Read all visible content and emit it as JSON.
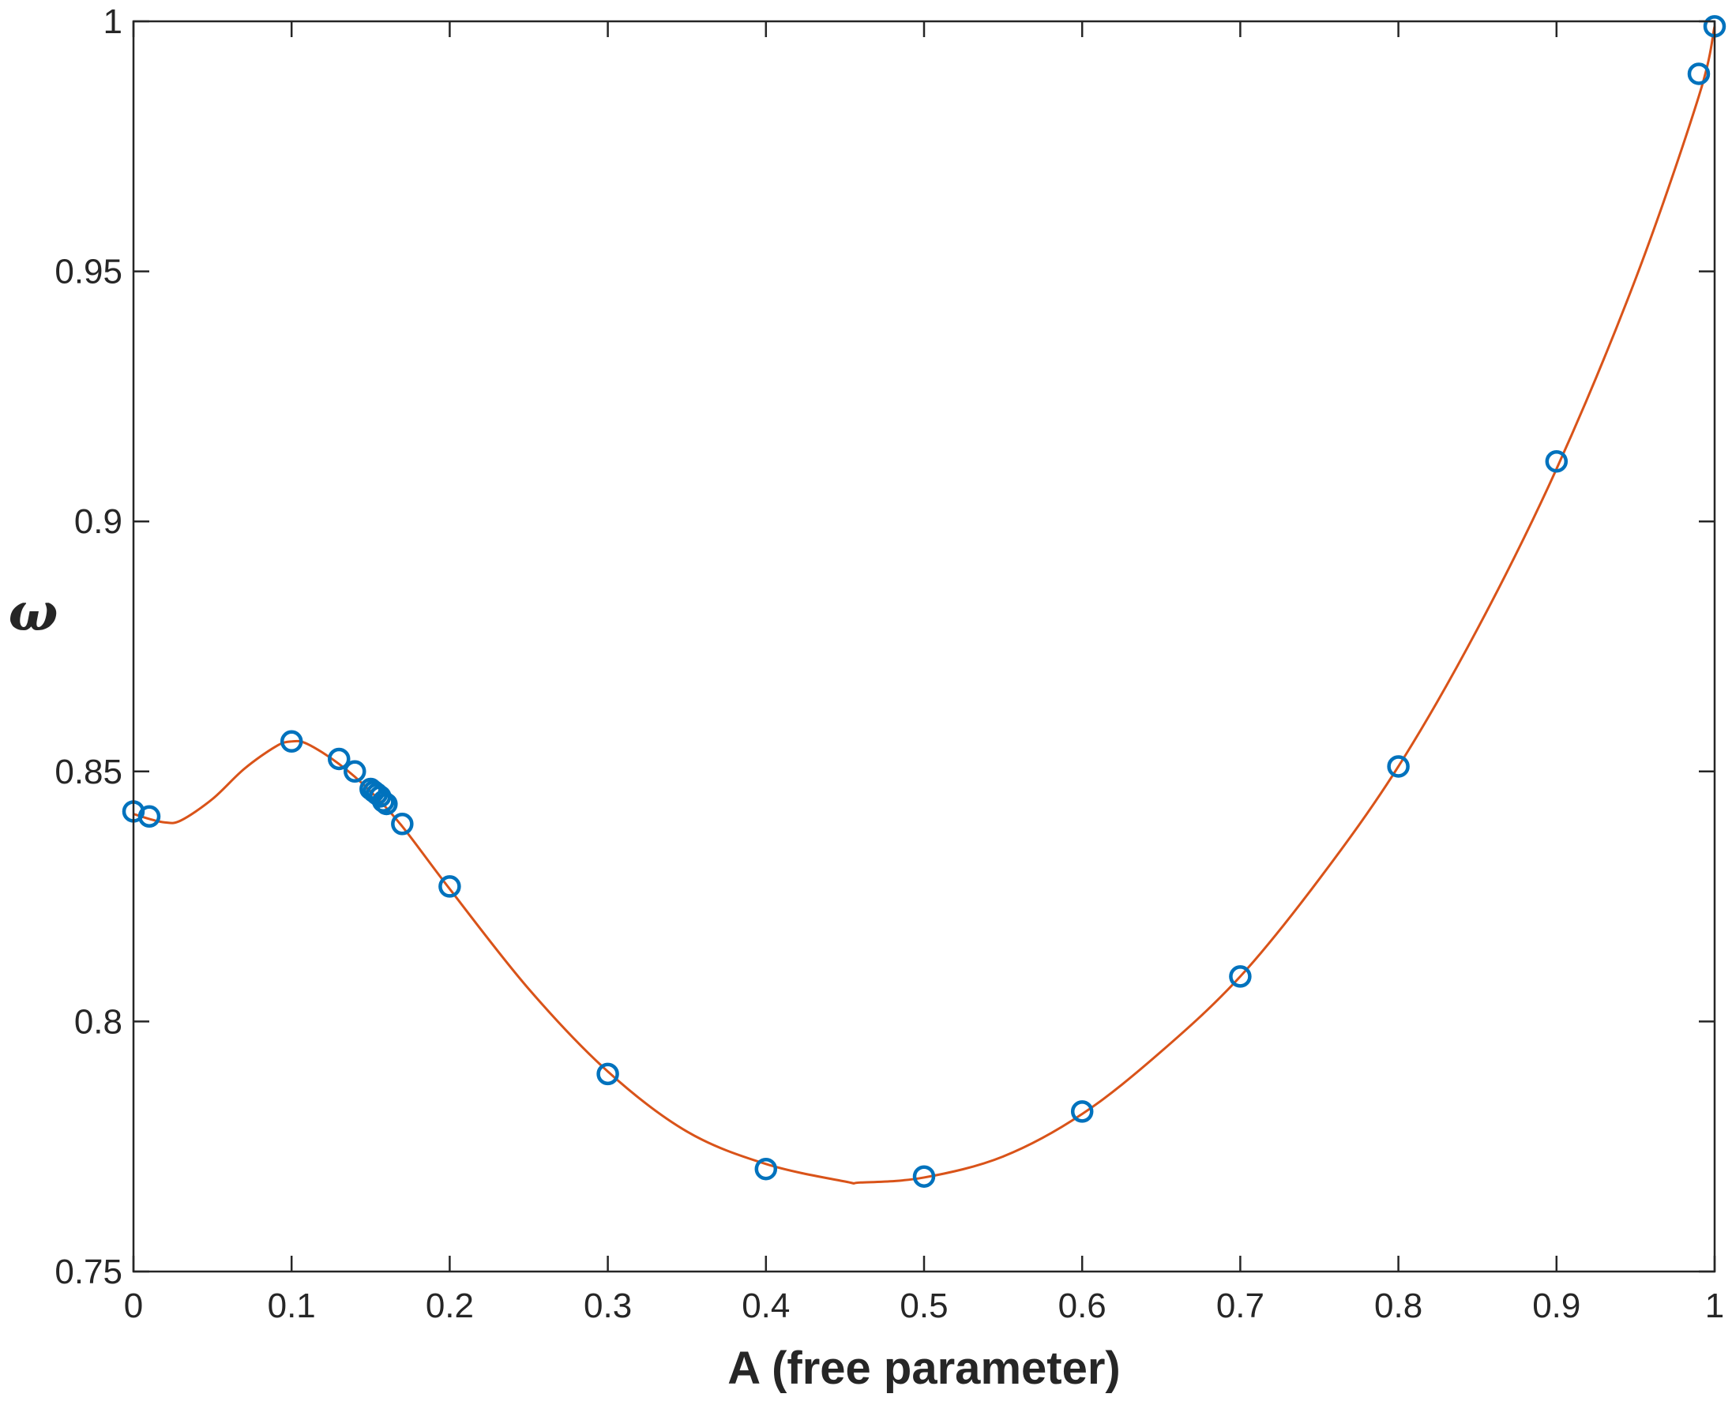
{
  "chart_data": {
    "type": "scatter",
    "title": "",
    "xlabel": "A (free parameter)",
    "ylabel": "ω",
    "xlim": [
      0,
      1
    ],
    "ylim": [
      0.75,
      1
    ],
    "xticks": [
      "0",
      "0.1",
      "0.2",
      "0.3",
      "0.4",
      "0.5",
      "0.6",
      "0.7",
      "0.8",
      "0.9",
      "1"
    ],
    "yticks": [
      "0.75",
      "0.8",
      "0.85",
      "0.9",
      "0.95",
      "1"
    ],
    "grid": false,
    "series": [
      {
        "type": "scatter",
        "marker": "circle-open",
        "color": "#0072BD",
        "x": [
          0.0,
          0.01,
          0.1,
          0.13,
          0.14,
          0.15,
          0.152,
          0.154,
          0.156,
          0.158,
          0.16,
          0.17,
          0.2,
          0.3,
          0.4,
          0.5,
          0.6,
          0.7,
          0.8,
          0.9,
          0.99,
          1.0
        ],
        "y": [
          0.842,
          0.841,
          0.856,
          0.8525,
          0.85,
          0.8465,
          0.846,
          0.8455,
          0.845,
          0.844,
          0.8435,
          0.8395,
          0.827,
          0.7895,
          0.7705,
          0.769,
          0.782,
          0.809,
          0.851,
          0.912,
          0.9895,
          0.999
        ]
      },
      {
        "type": "line",
        "color": "#D95319",
        "x": [
          0.0,
          0.01,
          0.02,
          0.03,
          0.05,
          0.07,
          0.09,
          0.1,
          0.11,
          0.13,
          0.15,
          0.17,
          0.2,
          0.25,
          0.3,
          0.35,
          0.4,
          0.45,
          0.46,
          0.5,
          0.55,
          0.6,
          0.65,
          0.7,
          0.75,
          0.8,
          0.85,
          0.9,
          0.95,
          0.99,
          1.0
        ],
        "y": [
          0.8415,
          0.8405,
          0.8398,
          0.8402,
          0.8445,
          0.8505,
          0.855,
          0.856,
          0.8555,
          0.8515,
          0.846,
          0.839,
          0.8265,
          0.8065,
          0.79,
          0.778,
          0.7715,
          0.768,
          0.7678,
          0.7688,
          0.773,
          0.7815,
          0.794,
          0.809,
          0.8285,
          0.851,
          0.8785,
          0.9105,
          0.9485,
          0.985,
          0.999
        ]
      }
    ]
  }
}
